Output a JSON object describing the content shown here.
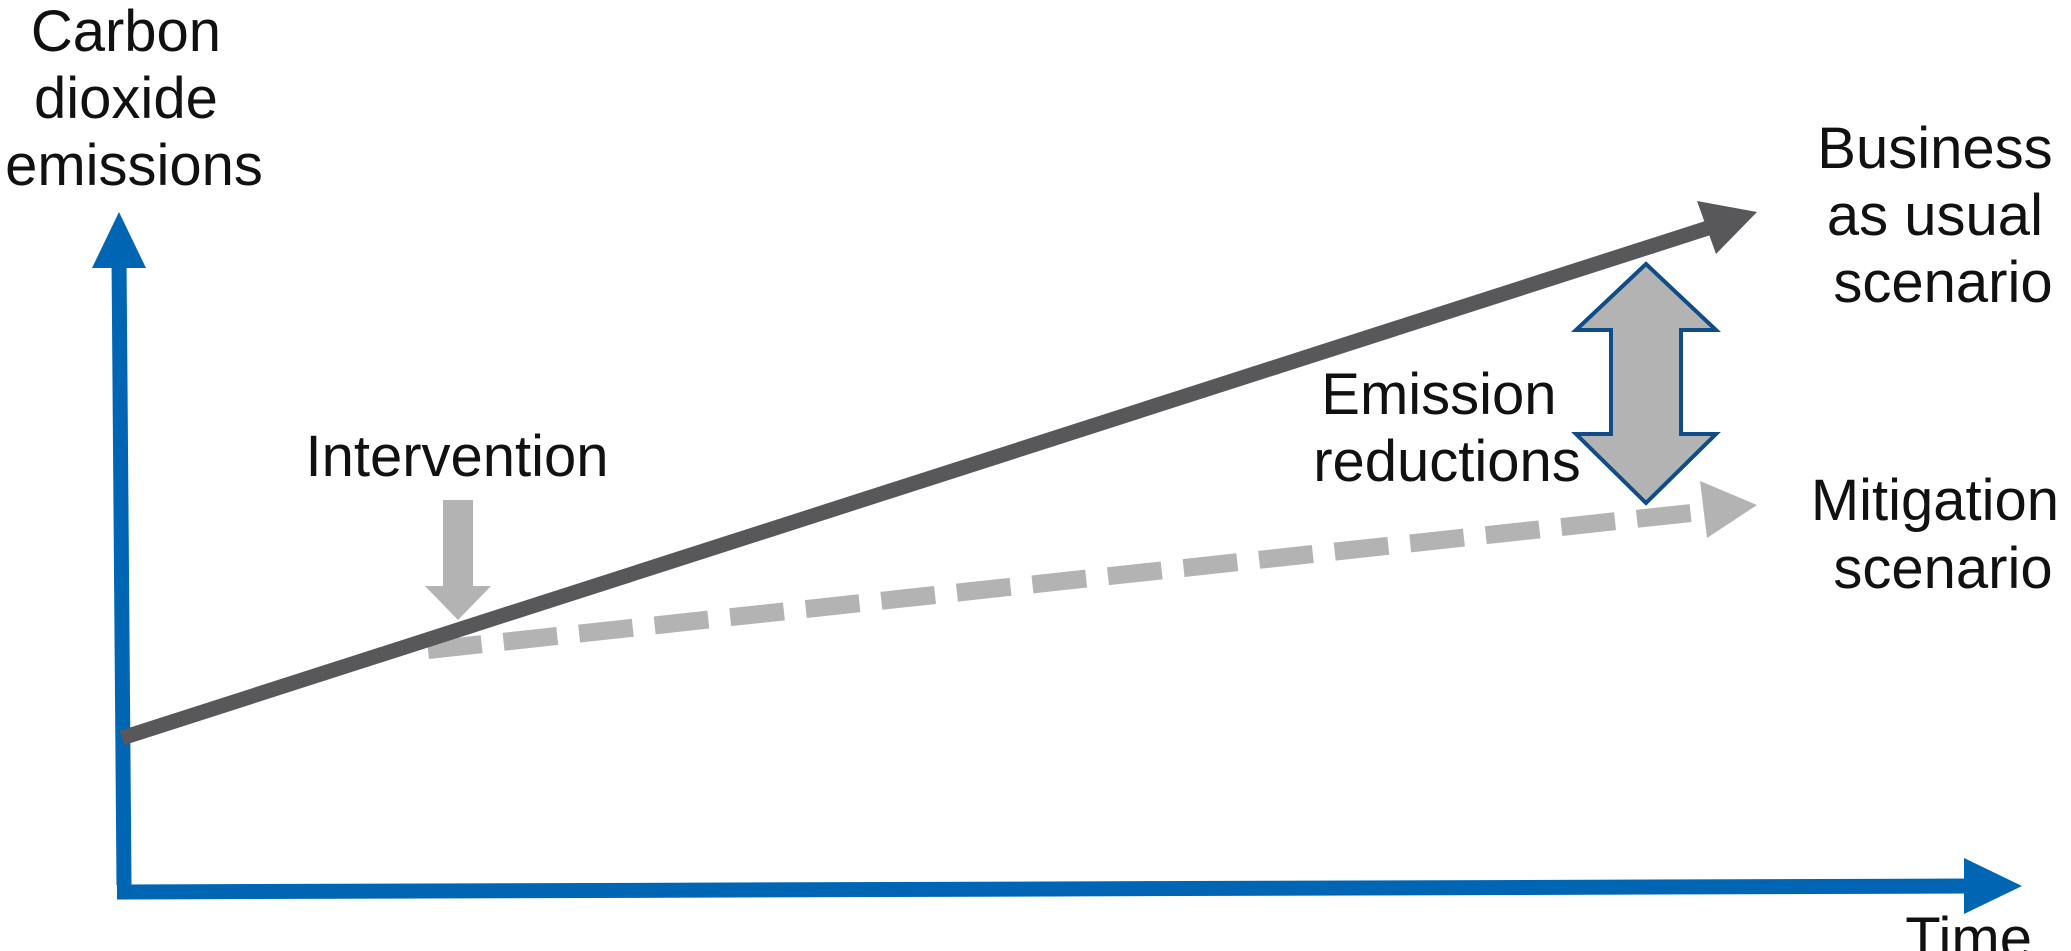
{
  "y_axis": {
    "label_lines": [
      "Carbon",
      "dioxide",
      "emissions"
    ],
    "color": "#0066b3"
  },
  "x_axis": {
    "label": "Time",
    "color": "#0066b3"
  },
  "business_as_usual": {
    "label_lines": [
      "Business",
      "as usual",
      "scenario"
    ],
    "color": "#58585a"
  },
  "mitigation": {
    "label_lines": [
      "Mitigation",
      "scenario"
    ],
    "color": "#b3b3b3"
  },
  "intervention": {
    "label": "Intervention",
    "color": "#b3b3b3"
  },
  "emission_reductions": {
    "label_lines": [
      "Emission",
      "reductions"
    ],
    "fill_color": "#b3b3b3",
    "stroke_color": "#0e4d86"
  }
}
